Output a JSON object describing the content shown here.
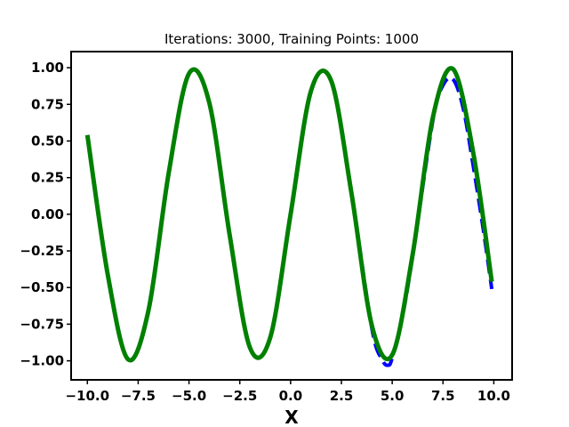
{
  "chart_data": {
    "type": "line",
    "title": "Iterations: 3000, Training Points: 1000",
    "xlabel": "X",
    "ylabel": "",
    "xlim": [
      -10.8,
      10.9
    ],
    "ylim": [
      -1.13,
      1.11
    ],
    "xticks": [
      -10.0,
      -7.5,
      -5.0,
      -2.5,
      0.0,
      2.5,
      5.0,
      7.5,
      10.0
    ],
    "xtick_labels": [
      "−10.0",
      "−7.5",
      "−5.0",
      "−2.5",
      "0.0",
      "2.5",
      "5.0",
      "7.5",
      "10.0"
    ],
    "yticks": [
      -1.0,
      -0.75,
      -0.5,
      -0.25,
      0.0,
      0.25,
      0.5,
      0.75,
      1.0
    ],
    "ytick_labels": [
      "−1.00",
      "−0.75",
      "−0.50",
      "−0.25",
      "0.00",
      "0.25",
      "0.50",
      "0.75",
      "1.00"
    ],
    "grid": false,
    "series": [
      {
        "color": "#0000ff",
        "style": "dashed",
        "x": [
          -10.0,
          -9.0,
          -8.0,
          -7.0,
          -6.0,
          -5.0,
          -4.0,
          -3.0,
          -2.0,
          -1.0,
          0.0,
          1.0,
          2.0,
          3.0,
          4.0,
          4.5,
          4.8,
          5.0,
          5.5,
          6.0,
          7.0,
          7.5,
          8.0,
          8.5,
          9.0,
          9.5,
          9.9
        ],
        "y": [
          0.54,
          -0.41,
          -0.99,
          -0.66,
          0.28,
          0.96,
          0.76,
          -0.14,
          -0.91,
          -0.84,
          0.0,
          0.84,
          0.91,
          0.14,
          -0.78,
          -0.99,
          -1.03,
          -0.98,
          -0.7,
          -0.29,
          0.64,
          0.88,
          0.92,
          0.72,
          0.32,
          -0.12,
          -0.51
        ]
      },
      {
        "color": "#008000",
        "style": "solid",
        "x": [
          -10.0,
          -9.0,
          -8.0,
          -7.0,
          -6.0,
          -5.0,
          -4.0,
          -3.0,
          -2.0,
          -1.0,
          0.0,
          1.0,
          2.0,
          3.0,
          4.0,
          5.0,
          6.0,
          7.0,
          8.0,
          9.0,
          9.9
        ],
        "y": [
          0.54,
          -0.41,
          -0.99,
          -0.66,
          0.28,
          0.96,
          0.76,
          -0.14,
          -0.91,
          -0.84,
          0.0,
          0.84,
          0.91,
          0.14,
          -0.76,
          -0.96,
          -0.28,
          0.66,
          0.99,
          0.41,
          -0.46
        ]
      }
    ]
  }
}
